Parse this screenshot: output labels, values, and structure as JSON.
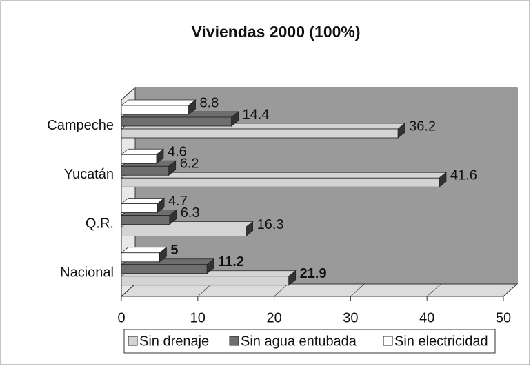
{
  "chart_data": {
    "type": "bar3d",
    "orientation": "horizontal",
    "title": "Viviendas 2000 (100%)",
    "categories": [
      "Campeche",
      "Yucatán",
      "Q.R.",
      "Nacional"
    ],
    "series": [
      {
        "name": "Sin drenaje",
        "color": "#d4d4d4",
        "values": [
          36.2,
          41.6,
          16.3,
          21.9
        ]
      },
      {
        "name": "Sin agua entubada",
        "color": "#6e6e6e",
        "values": [
          14.4,
          6.2,
          6.3,
          11.2
        ]
      },
      {
        "name": "Sin electricidad",
        "color": "#ffffff",
        "values": [
          8.8,
          4.6,
          4.7,
          5
        ]
      }
    ],
    "xlim": [
      0,
      50
    ],
    "xticks": [
      0,
      10,
      20,
      30,
      40,
      50
    ],
    "legend": "bottom"
  }
}
